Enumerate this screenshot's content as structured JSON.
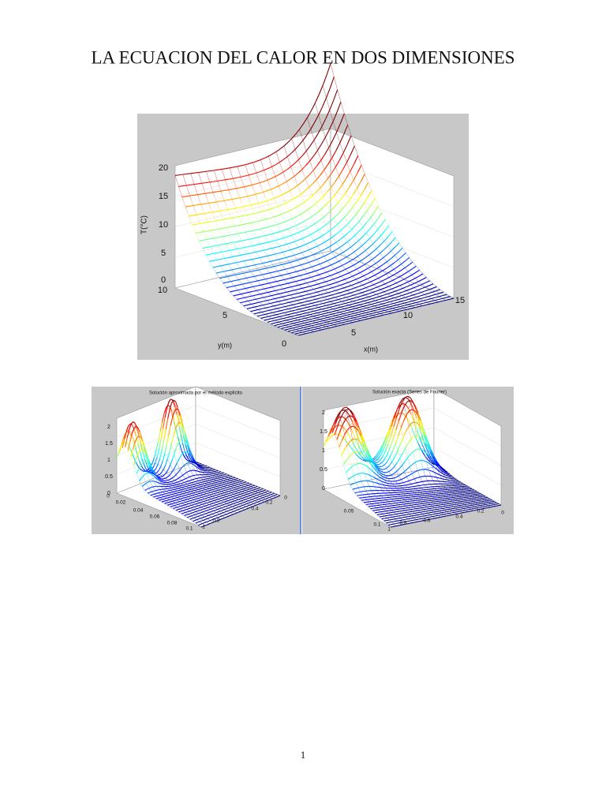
{
  "title": "LA ECUACION DEL CALOR EN DOS DIMENSIONES",
  "figures": [
    {
      "z_label": "T(°C)",
      "y_label": "y(m)",
      "x_label": "x(m)",
      "z_ticks": [
        "0",
        "5",
        "10",
        "15",
        "20"
      ],
      "y_ticks": [
        "10",
        "5",
        "0"
      ],
      "x_ticks": [
        "5",
        "10",
        "15"
      ]
    },
    {
      "title": "Solución aproximada por el método explícito",
      "z_ticks": [
        "2",
        "1.5",
        "1",
        "0.5",
        "0"
      ],
      "left_ticks": [
        "0",
        "0.02",
        "0.04",
        "0.06",
        "0.08",
        "0.1"
      ],
      "right_ticks": [
        "1",
        "0.8",
        "0.4",
        "0.2",
        "0"
      ]
    },
    {
      "title": "Solución exacta (Series de Fourier)",
      "z_ticks": [
        "2",
        "1.5",
        "1",
        "0.5",
        "0"
      ],
      "left_ticks": [
        "0.05",
        "0.1"
      ],
      "right_ticks": [
        "1",
        "0.8",
        "0.6",
        "0.4",
        "0.2",
        "0"
      ]
    }
  ],
  "page_number": "1"
}
